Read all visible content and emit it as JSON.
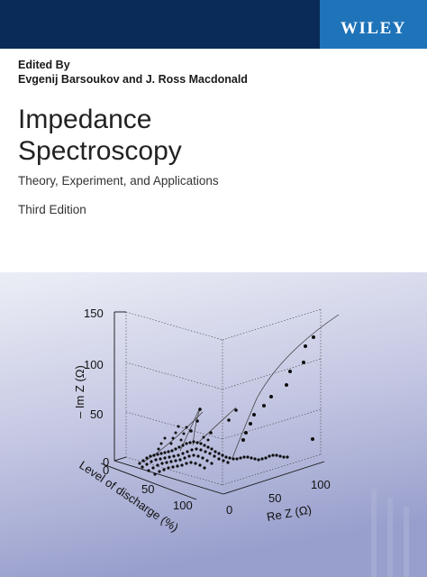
{
  "publisher": {
    "logo": "WILEY",
    "colors": {
      "bar": "#0a2b57",
      "logo_block": "#1e73b9"
    }
  },
  "edited_by_label": "Edited By",
  "editors": "Evgenij Barsoukov and J. Ross Macdonald",
  "title_line1": "Impedance",
  "title_line2": "Spectroscopy",
  "subtitle": "Theory, Experiment, and Applications",
  "edition": "Third Edition",
  "plot": {
    "z_axis_label": "– Im Z (Ω)",
    "x_axis_label": "Re Z (Ω)",
    "y_axis_label": "Level of discharge (%)",
    "z_ticks": [
      "150",
      "100",
      "50",
      "0"
    ],
    "x_ticks": [
      "0",
      "50",
      "100"
    ],
    "y_ticks": [
      "0",
      "50",
      "100"
    ],
    "colors": {
      "background_top": "#e9eaf4",
      "background_bottom": "#9da3cd",
      "ink": "#111111"
    }
  }
}
